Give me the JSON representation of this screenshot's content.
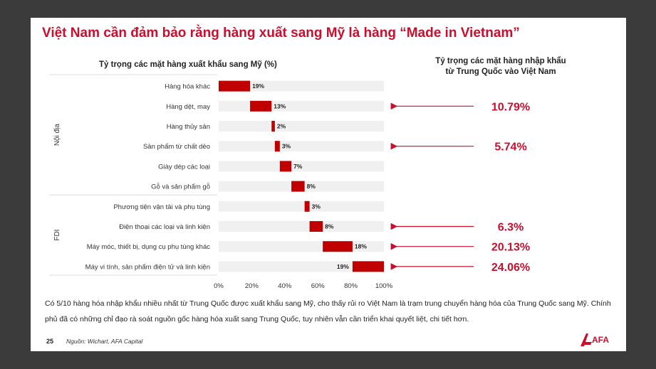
{
  "slide": {
    "title": "Việt Nam cần đảm bảo rằng hàng xuất sang Mỹ là hàng “Made in Vietnam”",
    "chart_title": "Tỷ trọng các mặt hàng xuất khẩu sang Mỹ (%)",
    "import_title_line1": "Tỷ trọng các mặt hàng nhập khẩu",
    "import_title_line2": "từ Trung Quốc vào Việt Nam",
    "description": "Có 5/10 hàng hóa nhập khẩu nhiều nhất từ Trung Quốc được xuất khẩu sang Mỹ, cho thấy rủi ro Việt Nam là trạm trung chuyển hàng hóa của Trung Quốc sang Mỹ. Chính phủ đã có những chỉ đạo rà soát nguồn gốc hàng hóa xuất sang Trung Quốc, tuy nhiên vẫn cần triển khai quyết liệt, chi tiết hơn.",
    "page_number": "25",
    "source": "Nguồn: Wichart, AFA Capital",
    "logo_text": "AFA",
    "accent_color": "#c8102e"
  },
  "chart_data": {
    "type": "bar",
    "orientation": "horizontal",
    "title": "Tỷ trọng các mặt hàng xuất khẩu sang Mỹ (%)",
    "categories": [
      "Hàng hóa khác",
      "Hàng dệt, may",
      "Hàng thủy sản",
      "Sản phẩm từ chất dẻo",
      "Giày dép các loại",
      "Gỗ và sản phẩm gỗ",
      "Phương tiện vận tải và phụ tùng",
      "Điện thoại các loại và linh kiện",
      "Máy móc, thiết bị, dụng cụ phụ tùng khác",
      "Máy vi tính, sản phẩm điện tử và linh kiện"
    ],
    "values": [
      19,
      13,
      2,
      3,
      7,
      8,
      3,
      8,
      18,
      19
    ],
    "value_labels": [
      "19%",
      "13%",
      "2%",
      "3%",
      "7%",
      "8%",
      "3%",
      "8%",
      "18%",
      "19%"
    ],
    "bar_start": [
      0,
      19,
      32,
      34,
      37,
      44,
      52,
      55,
      63,
      81
    ],
    "groups": [
      {
        "label": "Nội địa",
        "from": 0,
        "to": 5
      },
      {
        "label": "FDI",
        "from": 6,
        "to": 9
      }
    ],
    "xlim": [
      0,
      100
    ],
    "xticks": [
      "0%",
      "20%",
      "40%",
      "60%",
      "80%",
      "100%"
    ],
    "bar_color": "#c00000",
    "track_color": "#f0f0f0",
    "imports_from_china": [
      {
        "category_index": 1,
        "label": "10.79%"
      },
      {
        "category_index": 3,
        "label": "5.74%"
      },
      {
        "category_index": 7,
        "label": "6.3%"
      },
      {
        "category_index": 8,
        "label": "20.13%"
      },
      {
        "category_index": 9,
        "label": "24.06%"
      }
    ]
  }
}
